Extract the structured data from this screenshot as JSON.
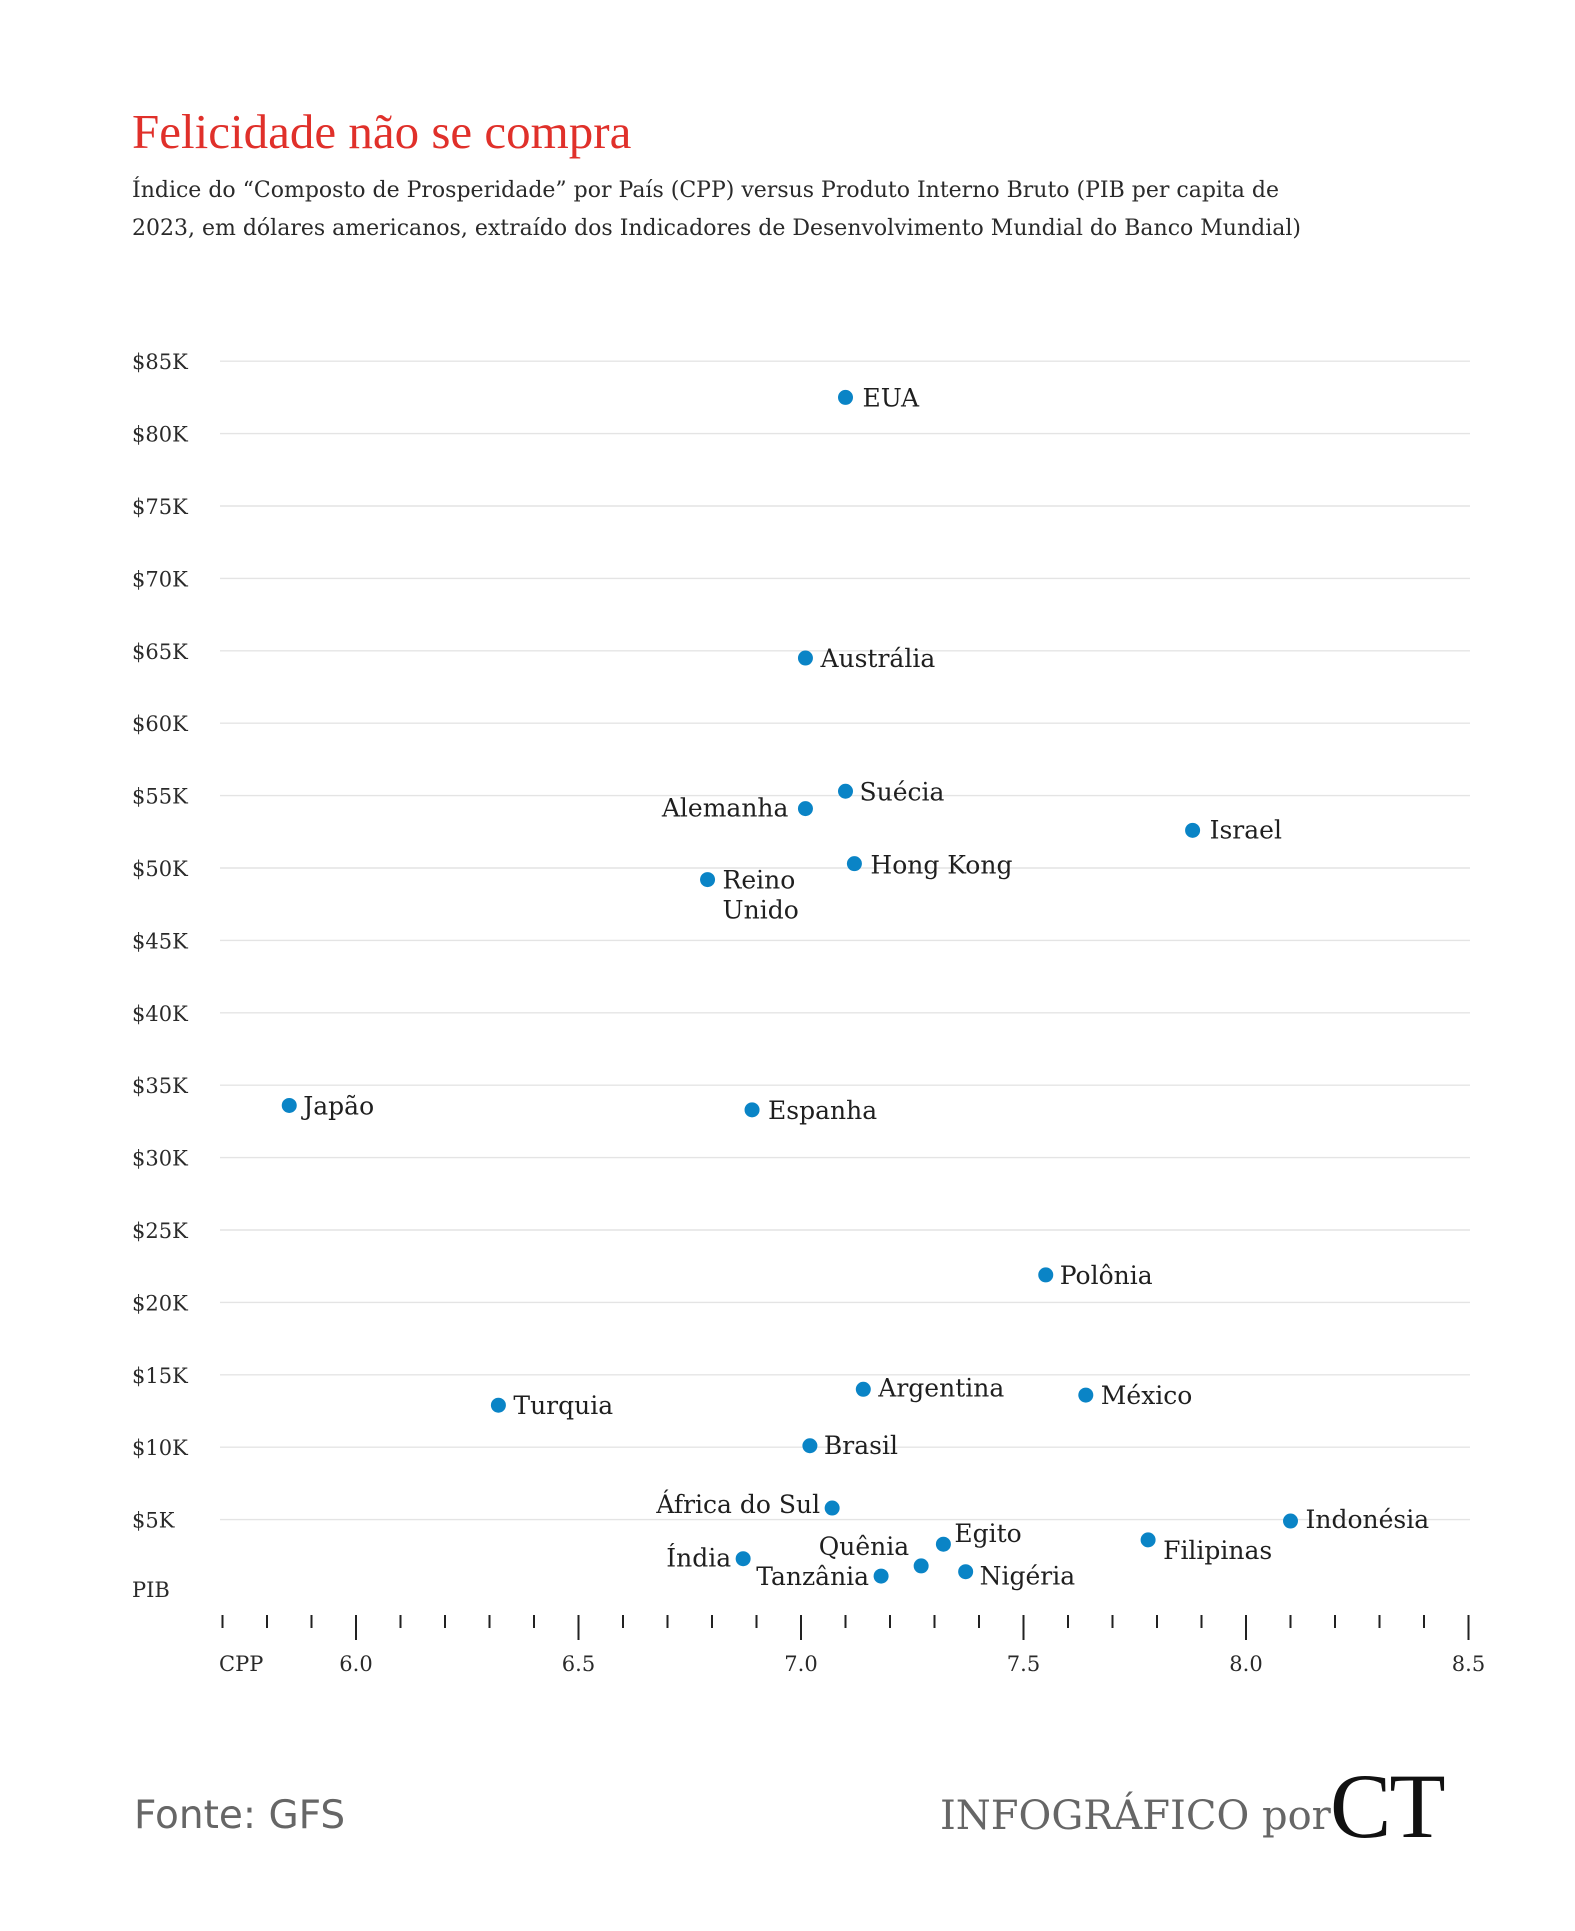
{
  "title": "Felicidade não se compra",
  "subtitle": "Índice do “Composto de Prosperidade” por País (CPP) versus Produto Interno Bruto (PIB per capita de 2023, em dólares americanos, extraído dos Indicadores de Desenvolvimento Mundial do Banco Mundial)",
  "footer": {
    "source": "Fonte: GFS",
    "credit": "INFOGRÁFICO por",
    "logo": "CT"
  },
  "chart_data": {
    "type": "scatter",
    "title": "Felicidade não se compra",
    "xlabel": "CPP",
    "ylabel": "PIB",
    "xlim": [
      5.7,
      8.5
    ],
    "ylim": [
      0,
      85000
    ],
    "x_ticks": [
      6.0,
      6.5,
      7.0,
      7.5,
      8.0,
      8.5
    ],
    "x_tick_labels": [
      "6.0",
      "6.5",
      "7.0",
      "7.5",
      "8.0",
      "8.5"
    ],
    "y_ticks": [
      5000,
      10000,
      15000,
      20000,
      25000,
      30000,
      35000,
      40000,
      45000,
      50000,
      55000,
      60000,
      65000,
      70000,
      75000,
      80000,
      85000
    ],
    "y_tick_labels": [
      "$5K",
      "$10K",
      "$15K",
      "$20K",
      "$25K",
      "$30K",
      "$35K",
      "$40K",
      "$45K",
      "$50K",
      "$55K",
      "$60K",
      "$65K",
      "$70K",
      "$75K",
      "$80K",
      "$85K"
    ],
    "grid": "horizontal",
    "point_color": "#0a84c6",
    "points": [
      {
        "label": "EUA",
        "x": 7.1,
        "y": 82500
      },
      {
        "label": "Austrália",
        "x": 7.01,
        "y": 64500
      },
      {
        "label": "Suécia",
        "x": 7.1,
        "y": 55300
      },
      {
        "label": "Alemanha",
        "x": 7.01,
        "y": 54100
      },
      {
        "label": "Israel",
        "x": 7.88,
        "y": 52600
      },
      {
        "label": "Hong Kong",
        "x": 7.12,
        "y": 50300
      },
      {
        "label": "Reino Unido",
        "x": 6.79,
        "y": 49200
      },
      {
        "label": "Japão",
        "x": 5.85,
        "y": 33600
      },
      {
        "label": "Espanha",
        "x": 6.89,
        "y": 33300
      },
      {
        "label": "Polônia",
        "x": 7.55,
        "y": 21900
      },
      {
        "label": "Argentina",
        "x": 7.14,
        "y": 14000
      },
      {
        "label": "México",
        "x": 7.64,
        "y": 13600
      },
      {
        "label": "Turquia",
        "x": 6.32,
        "y": 12900
      },
      {
        "label": "Brasil",
        "x": 7.02,
        "y": 10100
      },
      {
        "label": "África do Sul",
        "x": 7.07,
        "y": 5800
      },
      {
        "label": "Indonésia",
        "x": 8.1,
        "y": 4900
      },
      {
        "label": "Filipinas",
        "x": 7.78,
        "y": 3600
      },
      {
        "label": "Egito",
        "x": 7.32,
        "y": 3300
      },
      {
        "label": "Índia",
        "x": 6.87,
        "y": 2300
      },
      {
        "label": "Quênia",
        "x": 7.27,
        "y": 1800
      },
      {
        "label": "Nigéria",
        "x": 7.37,
        "y": 1400
      },
      {
        "label": "Tanzânia",
        "x": 7.18,
        "y": 1100
      }
    ]
  }
}
